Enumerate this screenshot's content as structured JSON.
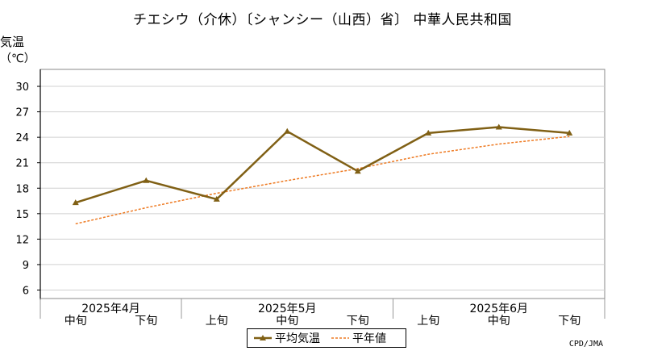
{
  "chart_data": {
    "type": "line",
    "title": "チエシウ（介休）〔シャンシー（山西）省〕 中華人民共和国",
    "ylabel": "気温",
    "yunit": "（℃）",
    "ylim": [
      5,
      32
    ],
    "yticks": [
      6,
      9,
      12,
      15,
      18,
      21,
      24,
      27,
      30
    ],
    "grid": true,
    "categories": [
      "中旬",
      "下旬",
      "上旬",
      "中旬",
      "下旬",
      "上旬",
      "中旬",
      "下旬"
    ],
    "month_labels": [
      {
        "label": "2025年4月",
        "center_index": 0.5
      },
      {
        "label": "2025年5月",
        "center_index": 3
      },
      {
        "label": "2025年6月",
        "center_index": 6
      }
    ],
    "series": [
      {
        "name": "平均気温",
        "color": "#806015",
        "style": "solid-marker",
        "values": [
          16.3,
          18.9,
          16.7,
          24.7,
          20.0,
          24.5,
          25.2,
          24.5
        ]
      },
      {
        "name": "平年値",
        "color": "#ee7a22",
        "style": "dashed",
        "values": [
          13.8,
          15.7,
          17.4,
          18.9,
          20.3,
          22.0,
          23.2,
          24.1
        ]
      }
    ],
    "legend_position": "bottom-center",
    "credit": "CPD/JMA"
  }
}
